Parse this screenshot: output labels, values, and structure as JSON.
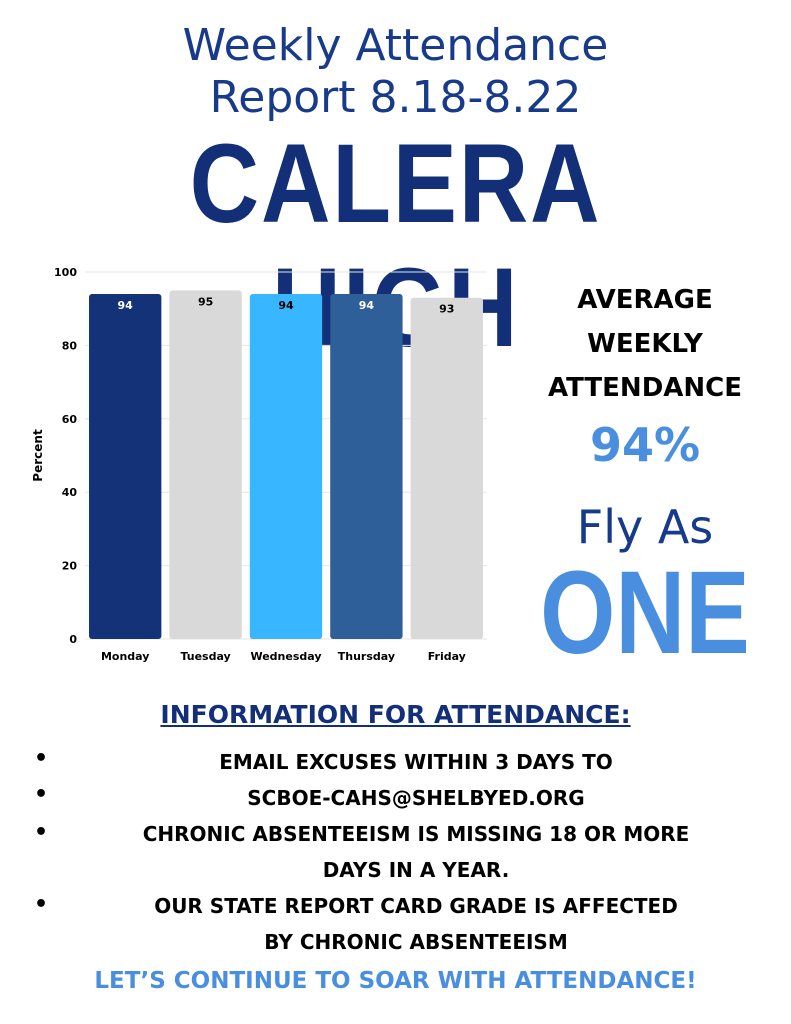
{
  "header": {
    "title_line1": "Weekly Attendance",
    "title_line2": "Report 8.18-8.22",
    "school": "CALERA HIGH"
  },
  "side": {
    "line1": "AVERAGE",
    "line2": "WEEKLY",
    "line3": "ATTENDANCE",
    "average": "94%",
    "slogan1": "Fly As",
    "slogan2": "ONE"
  },
  "info": {
    "heading": "INFORMATION FOR ATTENDANCE:",
    "bullets": [
      {
        "line1": "EMAIL EXCUSES WITHIN 3 DAYS TO",
        "line2": ""
      },
      {
        "line1": "SCBOE-CAHS@SHELBYED.ORG",
        "line2": ""
      },
      {
        "line1": "CHRONIC ABSENTEEISM IS MISSING 18 OR MORE",
        "line2": "DAYS IN A YEAR."
      },
      {
        "line1": "OUR STATE REPORT CARD GRADE IS AFFECTED",
        "line2": "BY CHRONIC ABSENTEEISM"
      }
    ],
    "footer": "LET’S CONTINUE TO SOAR WITH ATTENDANCE!"
  },
  "colors": {
    "dark_navy": "#133277",
    "light_gray": "#d9d9d9",
    "sky_blue": "#38b6ff",
    "steel_blue": "#2e5f98",
    "accent_blue": "#4a8ee0"
  },
  "chart_data": {
    "type": "bar",
    "title": "",
    "xlabel": "",
    "ylabel": "Percent",
    "ylim": [
      0,
      100
    ],
    "yticks": [
      0,
      20,
      40,
      60,
      80,
      100
    ],
    "grid": true,
    "categories": [
      "Monday",
      "Tuesday",
      "Wednesday",
      "Thursday",
      "Friday"
    ],
    "values": [
      94,
      95,
      94,
      94,
      93
    ],
    "bar_colors": [
      "#133277",
      "#d9d9d9",
      "#38b6ff",
      "#2e5f98",
      "#d9d9d9"
    ],
    "label_colors": [
      "#ffffff",
      "#000000",
      "#000000",
      "#ffffff",
      "#000000"
    ]
  }
}
